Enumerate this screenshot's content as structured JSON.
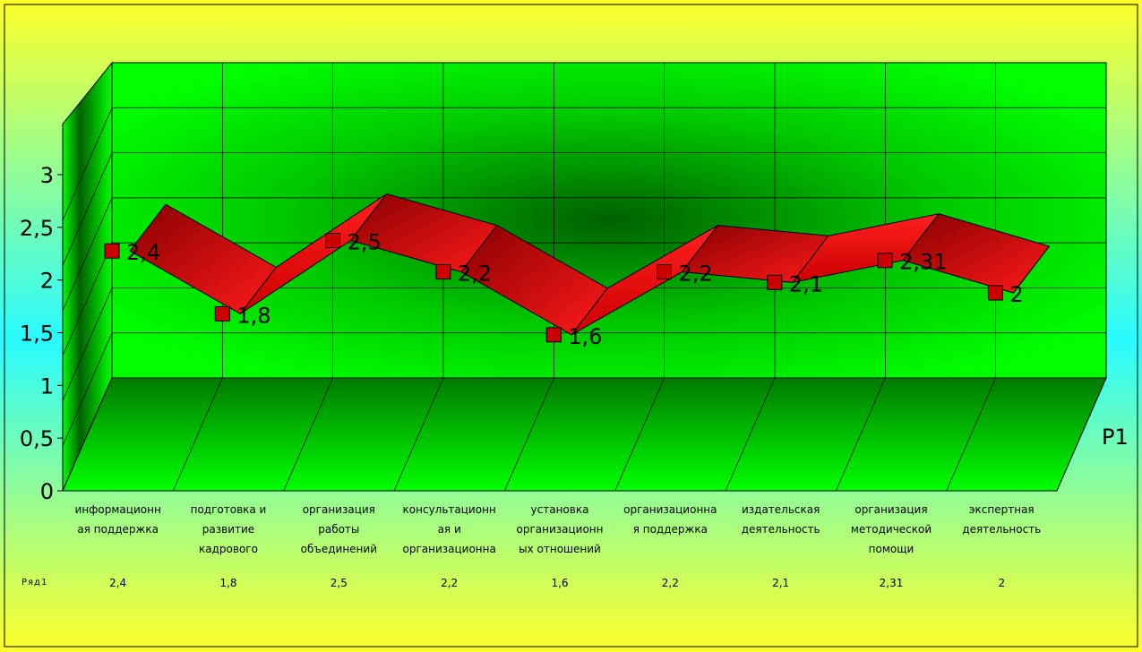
{
  "chart_data": {
    "type": "line",
    "categories": [
      "информационн\nая поддержка",
      "подготовка и\nразвитие\nкадрового",
      "организация\nработы\nобъединений",
      "консультационн\nая и\nорганизационна",
      "установка\nорганизационн\nых отношений",
      "организационна\nя поддержка",
      "издательская\nдеятельность",
      "организация\nметодической\nпомощи",
      "экспертная\nдеятельность"
    ],
    "series": [
      {
        "name": "Ряд1",
        "values": [
          2.4,
          1.8,
          2.5,
          2.2,
          1.6,
          2.2,
          2.1,
          2.31,
          2
        ]
      }
    ],
    "data_labels": [
      "2,4",
      "1,8",
      "2,5",
      "2,2",
      "1,6",
      "2,2",
      "2,1",
      "2,31",
      "2"
    ],
    "table_values": [
      "2,4",
      "1,8",
      "2,5",
      "2,2",
      "1,6",
      "2,2",
      "2,1",
      "2,31",
      "2"
    ],
    "y_ticks": [
      "0",
      "0,5",
      "1",
      "1,5",
      "2",
      "2,5",
      "3"
    ],
    "ylim": [
      0,
      3.5
    ],
    "depth_label": "Р1",
    "chart_style": "3d-ribbon",
    "grid": true,
    "colors": {
      "series": "#ff0000",
      "marker": "#cc0000",
      "wall": "#00ff00",
      "background_top": "#ffff33",
      "background_mid": "#33ffff"
    }
  }
}
